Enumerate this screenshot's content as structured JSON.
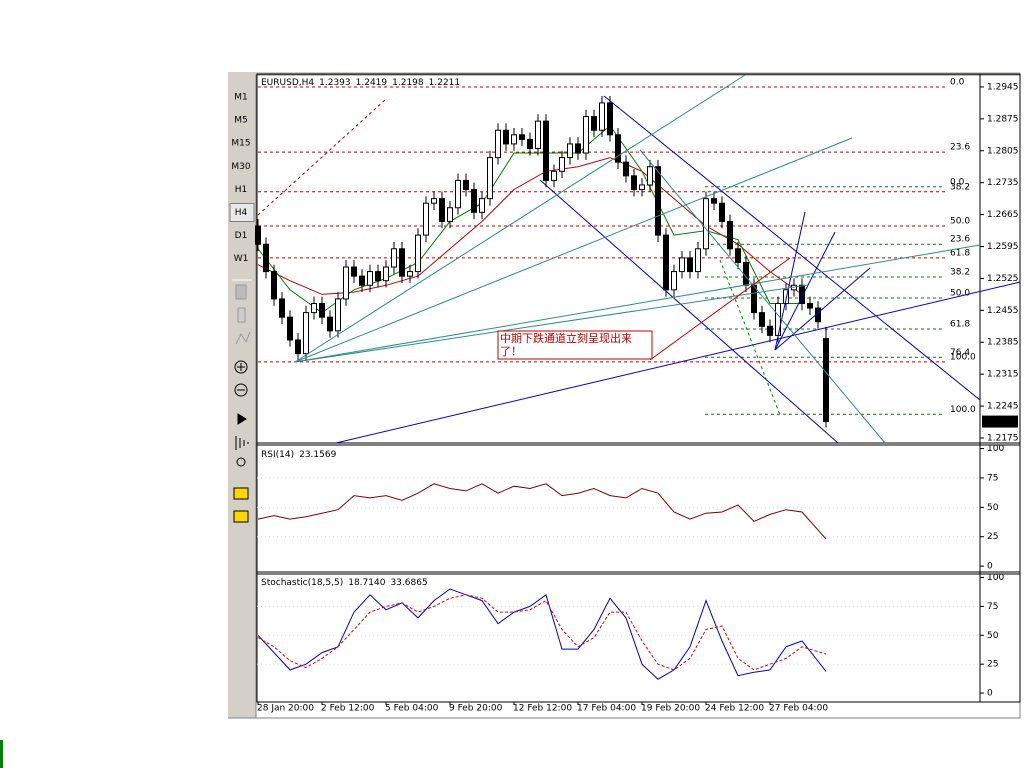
{
  "toolbar": {
    "timeframes": [
      "M1",
      "M5",
      "M15",
      "M30",
      "H1",
      "H4",
      "D1",
      "W1"
    ],
    "selected_index": 5
  },
  "annotation": "中期下跌通道立刻呈现出来了！",
  "chart_data": [
    {
      "type": "candlestick",
      "title": "EURUSD,H4",
      "categories": [
        "28 Jan 20:00",
        null,
        null,
        null,
        null,
        null,
        null,
        null,
        "2 Feb 12:00",
        null,
        null,
        null,
        null,
        null,
        null,
        null,
        "5 Feb 04:00",
        null,
        null,
        null,
        null,
        null,
        null,
        null,
        "9 Feb 20:00",
        null,
        null,
        null,
        null,
        null,
        null,
        null,
        "12 Feb 12:00",
        null,
        null,
        null,
        null,
        null,
        null,
        null,
        "17 Feb 04:00",
        null,
        null,
        null,
        null,
        null,
        null,
        null,
        "19 Feb 20:00",
        null,
        null,
        null,
        null,
        null,
        null,
        null,
        "24 Feb 12:00",
        null,
        null,
        null,
        null,
        null,
        null,
        null,
        "27 Feb 04:00",
        null,
        null,
        null,
        null,
        null,
        null,
        null
      ],
      "open": [
        1.264,
        1.26,
        1.254,
        1.248,
        1.244,
        1.239,
        1.236,
        1.245,
        1.247,
        1.244,
        1.241,
        1.248,
        1.255,
        1.253,
        1.251,
        1.254,
        1.252,
        1.255,
        1.259,
        1.253,
        1.254,
        1.262,
        1.269,
        1.27,
        1.265,
        1.268,
        1.274,
        1.272,
        1.267,
        1.27,
        1.279,
        1.285,
        1.282,
        1.284,
        1.283,
        1.281,
        1.287,
        1.274,
        1.276,
        1.279,
        1.282,
        1.28,
        1.288,
        1.285,
        1.291,
        1.284,
        1.278,
        1.275,
        1.272,
        1.273,
        1.277,
        1.262,
        1.25,
        1.254,
        1.257,
        1.254,
        1.259,
        1.27,
        1.269,
        1.265,
        1.259,
        1.256,
        1.251,
        1.245,
        1.242,
        1.24,
        1.247,
        1.25,
        1.251,
        1.247,
        1.246,
        1.2393
      ],
      "high": [
        1.2655,
        1.2615,
        1.2555,
        1.2495,
        1.2455,
        1.2405,
        1.2465,
        1.2485,
        1.2485,
        1.2455,
        1.2495,
        1.2565,
        1.2565,
        1.2545,
        1.2555,
        1.2555,
        1.2565,
        1.2605,
        1.2605,
        1.2555,
        1.2635,
        1.2705,
        1.2715,
        1.2715,
        1.2695,
        1.2755,
        1.2755,
        1.2735,
        1.2715,
        1.2805,
        1.2865,
        1.2865,
        1.2855,
        1.2855,
        1.2845,
        1.2885,
        1.2885,
        1.2775,
        1.2805,
        1.2835,
        1.2835,
        1.2895,
        1.2895,
        1.2925,
        1.2925,
        1.2855,
        1.2795,
        1.2765,
        1.2745,
        1.2785,
        1.2785,
        1.2635,
        1.2555,
        1.2585,
        1.2585,
        1.2605,
        1.2715,
        1.2715,
        1.2705,
        1.2665,
        1.2605,
        1.2575,
        1.2525,
        1.2465,
        1.2435,
        1.2485,
        1.2515,
        1.2525,
        1.2525,
        1.2485,
        1.2475,
        1.2419
      ],
      "low": [
        1.2585,
        1.2525,
        1.2465,
        1.2425,
        1.2375,
        1.2345,
        1.2345,
        1.2435,
        1.2425,
        1.2395,
        1.2395,
        1.2465,
        1.2515,
        1.2495,
        1.2495,
        1.2505,
        1.2505,
        1.2535,
        1.2515,
        1.2515,
        1.2525,
        1.2605,
        1.2675,
        1.2635,
        1.2635,
        1.2665,
        1.2705,
        1.2655,
        1.2655,
        1.2685,
        1.2775,
        1.2805,
        1.2805,
        1.2815,
        1.2795,
        1.2795,
        1.2725,
        1.2725,
        1.2745,
        1.2775,
        1.2785,
        1.2785,
        1.2835,
        1.2835,
        1.2825,
        1.2765,
        1.2735,
        1.2705,
        1.2705,
        1.2715,
        1.2605,
        1.2485,
        1.2485,
        1.2525,
        1.2525,
        1.2525,
        1.2575,
        1.2675,
        1.2635,
        1.2575,
        1.2545,
        1.2495,
        1.2435,
        1.2405,
        1.2385,
        1.2385,
        1.2455,
        1.2485,
        1.2455,
        1.2445,
        1.2415,
        1.2198
      ],
      "close": [
        1.26,
        1.254,
        1.248,
        1.244,
        1.239,
        1.236,
        1.245,
        1.247,
        1.244,
        1.241,
        1.248,
        1.255,
        1.253,
        1.251,
        1.254,
        1.252,
        1.255,
        1.259,
        1.253,
        1.254,
        1.262,
        1.269,
        1.27,
        1.265,
        1.268,
        1.274,
        1.272,
        1.267,
        1.27,
        1.279,
        1.285,
        1.282,
        1.284,
        1.283,
        1.281,
        1.287,
        1.274,
        1.276,
        1.279,
        1.282,
        1.28,
        1.288,
        1.285,
        1.291,
        1.284,
        1.278,
        1.275,
        1.272,
        1.273,
        1.277,
        1.262,
        1.25,
        1.254,
        1.257,
        1.254,
        1.259,
        1.27,
        1.269,
        1.265,
        1.259,
        1.256,
        1.251,
        1.245,
        1.242,
        1.24,
        1.247,
        1.25,
        1.251,
        1.247,
        1.246,
        1.243,
        1.2211
      ],
      "overlays": [
        {
          "color": "#c00000",
          "x": [
            0,
            4,
            8,
            12,
            16,
            20,
            24,
            28,
            32,
            36,
            40,
            44,
            48,
            52,
            56,
            60,
            64,
            68
          ],
          "values": [
            1.2555,
            1.252,
            1.249,
            1.2495,
            1.251,
            1.253,
            1.259,
            1.265,
            1.272,
            1.276,
            1.277,
            1.279,
            1.276,
            1.27,
            1.264,
            1.26,
            1.254,
            1.249
          ]
        },
        {
          "color": "#008000",
          "x": [
            0,
            4,
            8,
            12,
            16,
            20,
            24,
            28,
            32,
            36,
            40,
            44,
            48,
            52,
            56,
            60,
            64,
            68
          ],
          "values": [
            1.259,
            1.25,
            1.245,
            1.25,
            1.2525,
            1.256,
            1.265,
            1.269,
            1.28,
            1.28,
            1.28,
            1.286,
            1.276,
            1.262,
            1.263,
            1.261,
            1.247,
            1.247
          ]
        }
      ],
      "fibonacci": [
        {
          "color": "#c00000",
          "levels": [
            {
              "value": 1.2945,
              "label": "0.0"
            },
            {
              "value": 1.2802,
              "label": "23.6"
            },
            {
              "value": 1.2715,
              "label": "38.2"
            },
            {
              "value": 1.264,
              "label": "50.0"
            },
            {
              "value": 1.257,
              "label": "61.8"
            },
            {
              "value": 1.2342,
              "label": "100.0"
            }
          ]
        },
        {
          "color": "#008000",
          "levels": [
            {
              "value": 1.2726,
              "label": "0.0"
            },
            {
              "value": 1.26,
              "label": "23.6"
            },
            {
              "value": 1.2528,
              "label": "38.2"
            },
            {
              "value": 1.2482,
              "label": "50.0"
            },
            {
              "value": 1.2414,
              "label": "61.8"
            },
            {
              "value": 1.2352,
              "label": "76.4"
            },
            {
              "value": 1.2227,
              "label": "100.0"
            }
          ]
        }
      ],
      "ylim": [
        1.2164,
        1.2969
      ],
      "yticks": [
        1.2945,
        1.2875,
        1.2805,
        1.2735,
        1.2665,
        1.2595,
        1.2525,
        1.2455,
        1.2385,
        1.2315,
        1.2245,
        1.2175
      ],
      "grid": false
    },
    {
      "type": "line",
      "title": "RSI(14)",
      "x": [
        0,
        2,
        4,
        6,
        8,
        10,
        12,
        14,
        16,
        18,
        20,
        22,
        24,
        26,
        28,
        30,
        32,
        34,
        36,
        38,
        40,
        42,
        44,
        46,
        48,
        50,
        52,
        54,
        56,
        58,
        60,
        62,
        64,
        66,
        68,
        71
      ],
      "series": [
        {
          "color": "#800000",
          "values": [
            40,
            43,
            40,
            42,
            45,
            48,
            60,
            58,
            60,
            56,
            62,
            70,
            66,
            64,
            70,
            62,
            68,
            66,
            70,
            60,
            62,
            66,
            60,
            58,
            66,
            62,
            46,
            40,
            45,
            46,
            52,
            38,
            44,
            48,
            46,
            23.1569
          ]
        }
      ],
      "ylim": [
        -5,
        103
      ],
      "yticks": [
        0,
        25,
        50,
        75,
        100
      ]
    },
    {
      "type": "line",
      "title": "Stochastic(18,5,5)",
      "x": [
        0,
        2,
        4,
        6,
        8,
        10,
        12,
        14,
        16,
        18,
        20,
        22,
        24,
        26,
        28,
        30,
        32,
        34,
        36,
        38,
        40,
        42,
        44,
        46,
        48,
        50,
        52,
        54,
        56,
        58,
        60,
        62,
        64,
        66,
        68,
        71
      ],
      "series": [
        {
          "color": "#0000cc",
          "style": "solid",
          "values": [
            50,
            35,
            20,
            25,
            35,
            40,
            70,
            85,
            72,
            78,
            65,
            80,
            90,
            85,
            80,
            60,
            70,
            75,
            85,
            38,
            38,
            55,
            82,
            65,
            25,
            12,
            20,
            40,
            80,
            45,
            15,
            18,
            20,
            40,
            45,
            18.714
          ]
        },
        {
          "color": "#e00000",
          "style": "dashed",
          "values": [
            48,
            40,
            28,
            22,
            30,
            40,
            55,
            70,
            75,
            78,
            70,
            75,
            82,
            85,
            82,
            70,
            70,
            72,
            80,
            55,
            40,
            48,
            70,
            70,
            45,
            25,
            20,
            30,
            55,
            58,
            30,
            20,
            25,
            30,
            40,
            33.6865
          ]
        }
      ],
      "readout_labels": [
        "18.7140",
        "33.6865"
      ],
      "ylim": [
        -6,
        103
      ],
      "yticks": [
        0,
        25,
        50,
        75,
        100
      ]
    }
  ]
}
